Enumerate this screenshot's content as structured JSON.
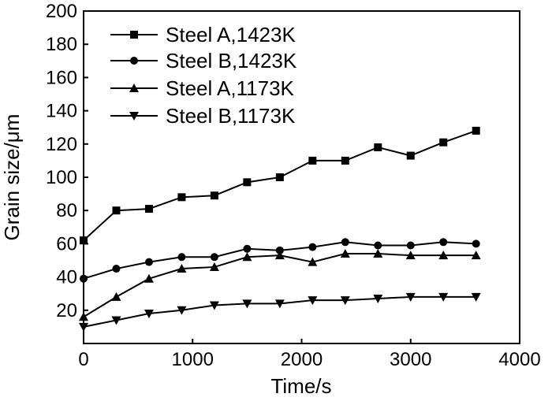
{
  "chart_data": {
    "type": "line",
    "xlabel": "Time/s",
    "ylabel": "Grain size/μm",
    "xlim": [
      0,
      4000
    ],
    "ylim": [
      0,
      200
    ],
    "xticks": [
      0,
      1000,
      2000,
      3000,
      4000
    ],
    "yticks": [
      20,
      40,
      60,
      80,
      100,
      120,
      140,
      160,
      180,
      200
    ],
    "grid": false,
    "legend_position": "top-left",
    "series": [
      {
        "name": "Steel A,1423K",
        "marker": "square",
        "color": "#000000",
        "x": [
          0,
          300,
          600,
          900,
          1200,
          1500,
          1800,
          2100,
          2400,
          2700,
          3000,
          3300,
          3600
        ],
        "y": [
          62,
          80,
          81,
          88,
          89,
          97,
          100,
          110,
          110,
          118,
          113,
          121,
          128
        ]
      },
      {
        "name": "Steel B,1423K",
        "marker": "circle",
        "color": "#000000",
        "x": [
          0,
          300,
          600,
          900,
          1200,
          1500,
          1800,
          2100,
          2400,
          2700,
          3000,
          3300,
          3600
        ],
        "y": [
          39,
          45,
          49,
          52,
          52,
          57,
          56,
          58,
          61,
          59,
          59,
          61,
          60
        ]
      },
      {
        "name": "Steel A,1173K",
        "marker": "triangle-up",
        "color": "#000000",
        "x": [
          0,
          300,
          600,
          900,
          1200,
          1500,
          1800,
          2100,
          2400,
          2700,
          3000,
          3300,
          3600
        ],
        "y": [
          16,
          28,
          39,
          45,
          46,
          52,
          53,
          49,
          54,
          54,
          53,
          53,
          53
        ]
      },
      {
        "name": "Steel B,1173K",
        "marker": "triangle-down",
        "color": "#000000",
        "x": [
          0,
          300,
          600,
          900,
          1200,
          1500,
          1800,
          2100,
          2400,
          2700,
          3000,
          3300,
          3600
        ],
        "y": [
          10,
          14,
          18,
          20,
          23,
          24,
          24,
          26,
          26,
          27,
          28,
          28,
          28
        ]
      }
    ]
  }
}
